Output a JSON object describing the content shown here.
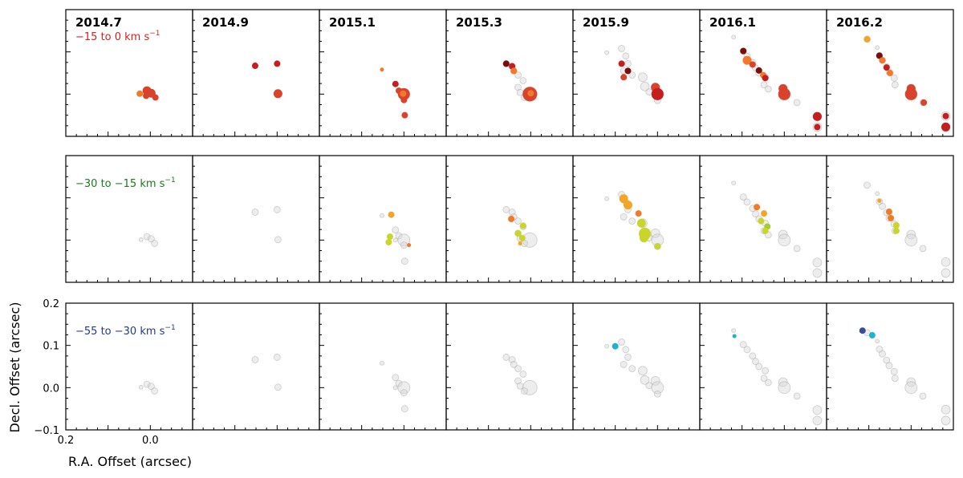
{
  "chart_data": {
    "type": "scatter",
    "epochs": [
      "2014.7",
      "2014.9",
      "2015.1",
      "2015.3",
      "2015.9",
      "2016.1",
      "2016.2"
    ],
    "rows": [
      {
        "label": "−15 to 0 km s",
        "sup": "−1",
        "color": "#d42020"
      },
      {
        "label": "−30 to −15 km s",
        "sup": "−1",
        "color": "#1a7a1a"
      },
      {
        "label": "−55 to −30 km s",
        "sup": "−1",
        "color": "#1f3a8a"
      }
    ],
    "xlabel": "R.A. Offset (arcsec)",
    "ylabel": "Decl. Offset (arcsec)",
    "xlim": [
      0.2,
      -0.1
    ],
    "ylim": [
      -0.1,
      0.2
    ],
    "xticks": [
      0.2,
      0.0
    ],
    "xticklabels": [
      "0.2",
      "0.0"
    ],
    "yticks": [
      0.2,
      0.1,
      0.0,
      -0.1
    ],
    "yticklabels": [
      "0.2",
      "0.1",
      "0.0",
      "−0.1"
    ],
    "colors": {
      "background": "#c8c8c8",
      "vel_a": "#7a0d0d",
      "vel_b": "#c41e1e",
      "vel_c": "#d9432b",
      "vel_d": "#f07a2a",
      "vel_e": "#f2a528",
      "vel_f": "#c9d52a",
      "vel_g": "#a8c930",
      "vel_h": "#1fb2cf",
      "vel_i": "#3a4a9c"
    },
    "points": [
      [
        {
          "x": 0.008,
          "y": 0.008,
          "s": 3,
          "c": "vel_c"
        },
        {
          "x": -0.002,
          "y": 0.002,
          "s": 3,
          "c": "vel_c"
        },
        {
          "x": -0.012,
          "y": -0.008,
          "s": 2,
          "c": "vel_c"
        },
        {
          "x": 0.025,
          "y": 0.001,
          "s": 2,
          "c": "vel_d"
        },
        {
          "x": 0.01,
          "y": -0.004,
          "s": 2,
          "c": "vel_c"
        }
      ],
      [
        {
          "x": 0.052,
          "y": 0.067,
          "s": 2,
          "c": "vel_b"
        },
        {
          "x": 0.0,
          "y": 0.072,
          "s": 2,
          "c": "vel_b"
        },
        {
          "x": -0.002,
          "y": 0.001,
          "s": 3,
          "c": "vel_c"
        }
      ],
      [
        {
          "x": 0.052,
          "y": 0.058,
          "s": 1,
          "c": "vel_d"
        },
        {
          "x": 0.02,
          "y": 0.024,
          "s": 2,
          "c": "vel_b"
        },
        {
          "x": 0.012,
          "y": 0.008,
          "s": 2,
          "c": "vel_c"
        },
        {
          "x": 0.0,
          "y": 0.0,
          "s": 4,
          "c": "vel_c"
        },
        {
          "x": 0.002,
          "y": 0.001,
          "s": 2,
          "c": "vel_d"
        },
        {
          "x": 0.0,
          "y": -0.014,
          "s": 2,
          "c": "vel_c"
        },
        {
          "x": -0.002,
          "y": -0.05,
          "s": 2,
          "c": "vel_c"
        }
      ],
      [
        {
          "x": 0.058,
          "y": 0.072,
          "s": 2,
          "c": "vel_a"
        },
        {
          "x": 0.044,
          "y": 0.066,
          "s": 2,
          "c": "vel_b"
        },
        {
          "x": 0.04,
          "y": 0.055,
          "s": 2,
          "c": "vel_d"
        },
        {
          "x": 0.002,
          "y": 0.0,
          "s": 5,
          "c": "vel_c"
        },
        {
          "x": 0.0,
          "y": 0.002,
          "s": 2,
          "c": "vel_d"
        }
      ],
      [
        {
          "x": 0.085,
          "y": 0.072,
          "s": 2,
          "c": "vel_b"
        },
        {
          "x": 0.07,
          "y": 0.055,
          "s": 2,
          "c": "vel_a"
        },
        {
          "x": 0.08,
          "y": 0.04,
          "s": 2,
          "c": "vel_c"
        },
        {
          "x": 0.005,
          "y": 0.016,
          "s": 3,
          "c": "vel_c"
        },
        {
          "x": 0.0,
          "y": 0.0,
          "s": 4,
          "c": "vel_b"
        }
      ],
      [
        {
          "x": 0.097,
          "y": 0.102,
          "s": 2,
          "c": "vel_a"
        },
        {
          "x": 0.088,
          "y": 0.08,
          "s": 3,
          "c": "vel_d"
        },
        {
          "x": 0.075,
          "y": 0.07,
          "s": 2,
          "c": "vel_c"
        },
        {
          "x": 0.06,
          "y": 0.056,
          "s": 2,
          "c": "vel_a"
        },
        {
          "x": 0.05,
          "y": 0.045,
          "s": 2,
          "c": "vel_d"
        },
        {
          "x": 0.045,
          "y": 0.038,
          "s": 2,
          "c": "vel_b"
        },
        {
          "x": 0.003,
          "y": 0.013,
          "s": 3,
          "c": "vel_c"
        },
        {
          "x": 0.0,
          "y": 0.0,
          "s": 4,
          "c": "vel_c"
        },
        {
          "x": -0.078,
          "y": -0.053,
          "s": 3,
          "c": "vel_b"
        },
        {
          "x": -0.078,
          "y": -0.078,
          "s": 2,
          "c": "vel_b"
        }
      ],
      [
        {
          "x": 0.104,
          "y": 0.13,
          "s": 2,
          "c": "vel_e"
        },
        {
          "x": 0.075,
          "y": 0.091,
          "s": 2,
          "c": "vel_a"
        },
        {
          "x": 0.068,
          "y": 0.08,
          "s": 2,
          "c": "vel_d"
        },
        {
          "x": 0.058,
          "y": 0.063,
          "s": 2,
          "c": "vel_b"
        },
        {
          "x": 0.05,
          "y": 0.05,
          "s": 2,
          "c": "vel_d"
        },
        {
          "x": 0.0,
          "y": 0.013,
          "s": 3,
          "c": "vel_c"
        },
        {
          "x": 0.0,
          "y": 0.0,
          "s": 4,
          "c": "vel_c"
        },
        {
          "x": -0.03,
          "y": -0.02,
          "s": 2,
          "c": "vel_c"
        },
        {
          "x": -0.082,
          "y": -0.052,
          "s": 2,
          "c": "vel_b"
        },
        {
          "x": -0.082,
          "y": -0.078,
          "s": 3,
          "c": "vel_b"
        }
      ]
    ],
    "points_row2": [
      [],
      [],
      [
        {
          "x": 0.03,
          "y": 0.06,
          "s": 2,
          "c": "vel_e"
        },
        {
          "x": 0.033,
          "y": 0.008,
          "s": 2,
          "c": "vel_f"
        },
        {
          "x": 0.036,
          "y": -0.005,
          "s": 2,
          "c": "vel_f"
        },
        {
          "x": -0.012,
          "y": -0.012,
          "s": 1,
          "c": "vel_d"
        }
      ],
      [
        {
          "x": 0.046,
          "y": 0.05,
          "s": 2,
          "c": "vel_d"
        },
        {
          "x": 0.018,
          "y": 0.034,
          "s": 2,
          "c": "vel_f"
        },
        {
          "x": 0.03,
          "y": 0.016,
          "s": 2,
          "c": "vel_f"
        },
        {
          "x": 0.02,
          "y": 0.005,
          "s": 2,
          "c": "vel_f"
        },
        {
          "x": 0.025,
          "y": -0.008,
          "s": 1,
          "c": "vel_e"
        }
      ],
      [
        {
          "x": 0.08,
          "y": 0.098,
          "s": 3,
          "c": "vel_e"
        },
        {
          "x": 0.07,
          "y": 0.083,
          "s": 3,
          "c": "vel_e"
        },
        {
          "x": 0.045,
          "y": 0.063,
          "s": 2,
          "c": "vel_d"
        },
        {
          "x": 0.038,
          "y": 0.04,
          "s": 3,
          "c": "vel_f"
        },
        {
          "x": 0.03,
          "y": 0.015,
          "s": 4,
          "c": "vel_f"
        },
        {
          "x": 0.032,
          "y": 0.005,
          "s": 3,
          "c": "vel_f"
        },
        {
          "x": 0.0,
          "y": -0.015,
          "s": 2,
          "c": "vel_f"
        }
      ],
      [
        {
          "x": 0.065,
          "y": 0.078,
          "s": 2,
          "c": "vel_d"
        },
        {
          "x": 0.048,
          "y": 0.063,
          "s": 2,
          "c": "vel_e"
        },
        {
          "x": 0.055,
          "y": 0.045,
          "s": 2,
          "c": "vel_f"
        },
        {
          "x": 0.04,
          "y": 0.032,
          "s": 2,
          "c": "vel_g"
        },
        {
          "x": 0.045,
          "y": 0.022,
          "s": 2,
          "c": "vel_f"
        }
      ],
      [
        {
          "x": 0.075,
          "y": 0.093,
          "s": 1,
          "c": "vel_e"
        },
        {
          "x": 0.052,
          "y": 0.067,
          "s": 2,
          "c": "vel_d"
        },
        {
          "x": 0.048,
          "y": 0.052,
          "s": 2,
          "c": "vel_d"
        },
        {
          "x": 0.035,
          "y": 0.035,
          "s": 2,
          "c": "vel_f"
        },
        {
          "x": 0.035,
          "y": 0.022,
          "s": 2,
          "c": "vel_f"
        }
      ]
    ],
    "points_row3": [
      [],
      [],
      [],
      [],
      [
        {
          "x": 0.1,
          "y": 0.098,
          "s": 2,
          "c": "vel_h"
        }
      ],
      [
        {
          "x": 0.118,
          "y": 0.122,
          "s": 1,
          "c": "vel_h"
        }
      ],
      [
        {
          "x": 0.115,
          "y": 0.135,
          "s": 2,
          "c": "vel_i"
        },
        {
          "x": 0.092,
          "y": 0.124,
          "s": 2,
          "c": "vel_h"
        }
      ]
    ],
    "ghosts": [
      [
        {
          "x": 0.008,
          "y": 0.008,
          "s": 2
        },
        {
          "x": -0.002,
          "y": 0.003,
          "s": 2
        },
        {
          "x": -0.01,
          "y": -0.008,
          "s": 2
        },
        {
          "x": 0.022,
          "y": 0.001,
          "s": 1
        }
      ],
      [
        {
          "x": 0.052,
          "y": 0.066,
          "s": 2
        },
        {
          "x": 0.0,
          "y": 0.072,
          "s": 2
        },
        {
          "x": -0.002,
          "y": 0.001,
          "s": 2
        }
      ],
      [
        {
          "x": 0.052,
          "y": 0.058,
          "s": 1
        },
        {
          "x": 0.02,
          "y": 0.024,
          "s": 2
        },
        {
          "x": 0.012,
          "y": 0.01,
          "s": 2
        },
        {
          "x": 0.0,
          "y": 0.0,
          "s": 4
        },
        {
          "x": 0.0,
          "y": -0.012,
          "s": 2
        },
        {
          "x": 0.02,
          "y": 0.0,
          "s": 1
        },
        {
          "x": -0.002,
          "y": -0.05,
          "s": 2
        }
      ],
      [
        {
          "x": 0.058,
          "y": 0.072,
          "s": 2
        },
        {
          "x": 0.044,
          "y": 0.066,
          "s": 2
        },
        {
          "x": 0.04,
          "y": 0.055,
          "s": 2
        },
        {
          "x": 0.03,
          "y": 0.045,
          "s": 2
        },
        {
          "x": 0.018,
          "y": 0.032,
          "s": 2
        },
        {
          "x": 0.03,
          "y": 0.016,
          "s": 2
        },
        {
          "x": 0.002,
          "y": 0.0,
          "s": 5
        },
        {
          "x": 0.025,
          "y": 0.004,
          "s": 2
        },
        {
          "x": 0.015,
          "y": -0.008,
          "s": 2
        }
      ],
      [
        {
          "x": 0.12,
          "y": 0.098,
          "s": 1
        },
        {
          "x": 0.085,
          "y": 0.108,
          "s": 2
        },
        {
          "x": 0.075,
          "y": 0.09,
          "s": 2
        },
        {
          "x": 0.07,
          "y": 0.072,
          "s": 2
        },
        {
          "x": 0.08,
          "y": 0.055,
          "s": 2
        },
        {
          "x": 0.06,
          "y": 0.045,
          "s": 2
        },
        {
          "x": 0.035,
          "y": 0.04,
          "s": 3
        },
        {
          "x": 0.03,
          "y": 0.018,
          "s": 3
        },
        {
          "x": 0.02,
          "y": 0.005,
          "s": 2
        },
        {
          "x": 0.005,
          "y": 0.016,
          "s": 3
        },
        {
          "x": 0.0,
          "y": 0.0,
          "s": 4
        },
        {
          "x": 0.0,
          "y": -0.015,
          "s": 2
        }
      ],
      [
        {
          "x": 0.12,
          "y": 0.135,
          "s": 1
        },
        {
          "x": 0.097,
          "y": 0.102,
          "s": 2
        },
        {
          "x": 0.088,
          "y": 0.09,
          "s": 2
        },
        {
          "x": 0.075,
          "y": 0.075,
          "s": 2
        },
        {
          "x": 0.068,
          "y": 0.062,
          "s": 2
        },
        {
          "x": 0.06,
          "y": 0.05,
          "s": 2
        },
        {
          "x": 0.045,
          "y": 0.04,
          "s": 2
        },
        {
          "x": 0.048,
          "y": 0.022,
          "s": 2
        },
        {
          "x": 0.038,
          "y": 0.012,
          "s": 2
        },
        {
          "x": 0.003,
          "y": 0.013,
          "s": 3
        },
        {
          "x": 0.0,
          "y": 0.0,
          "s": 4
        },
        {
          "x": -0.03,
          "y": -0.02,
          "s": 2
        },
        {
          "x": -0.078,
          "y": -0.053,
          "s": 3
        },
        {
          "x": -0.078,
          "y": -0.078,
          "s": 3
        }
      ],
      [
        {
          "x": 0.104,
          "y": 0.13,
          "s": 2
        },
        {
          "x": 0.08,
          "y": 0.11,
          "s": 1
        },
        {
          "x": 0.075,
          "y": 0.091,
          "s": 2
        },
        {
          "x": 0.068,
          "y": 0.08,
          "s": 2
        },
        {
          "x": 0.058,
          "y": 0.065,
          "s": 2
        },
        {
          "x": 0.052,
          "y": 0.052,
          "s": 2
        },
        {
          "x": 0.04,
          "y": 0.038,
          "s": 2
        },
        {
          "x": 0.038,
          "y": 0.022,
          "s": 2
        },
        {
          "x": 0.0,
          "y": 0.013,
          "s": 3
        },
        {
          "x": 0.0,
          "y": 0.0,
          "s": 4
        },
        {
          "x": -0.028,
          "y": -0.02,
          "s": 2
        },
        {
          "x": -0.082,
          "y": -0.052,
          "s": 3
        },
        {
          "x": -0.082,
          "y": -0.078,
          "s": 3
        }
      ]
    ]
  }
}
